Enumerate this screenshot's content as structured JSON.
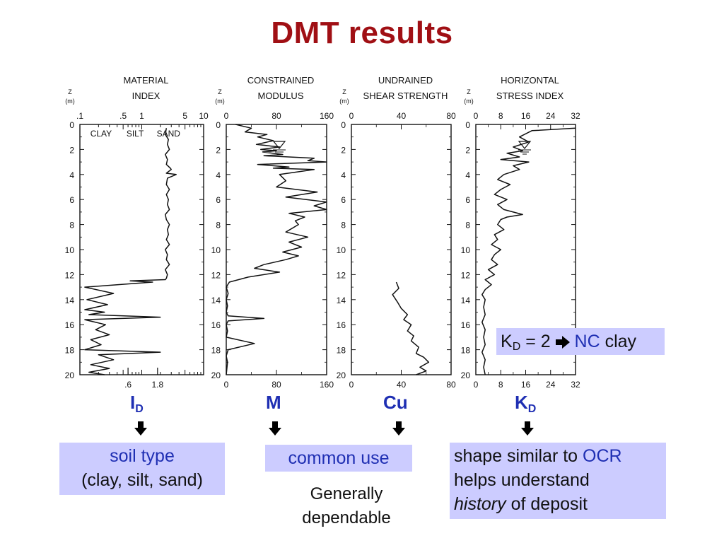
{
  "slide": {
    "title": "DMT results"
  },
  "chart_data": [
    {
      "type": "line",
      "title": "MATERIAL\nINDEX",
      "ylabel": "Z (m)",
      "xscale": "log",
      "xlim": [
        0.1,
        10
      ],
      "ylim": [
        20,
        0
      ],
      "x_top_ticks": [
        ".1",
        ".5",
        "1",
        "5",
        "10"
      ],
      "x_bottom_ticks": [
        ".6",
        "1.8"
      ],
      "y_ticks": [
        "0",
        "2",
        "4",
        "6",
        "8",
        "10",
        "12",
        "14",
        "16",
        "18",
        "20"
      ],
      "annotations": [
        "CLAY",
        "SILT",
        "SAND"
      ],
      "series": [
        {
          "x": [
            2.5,
            2.4,
            2.7,
            2.6,
            2.8,
            2.4,
            2.6,
            2.5,
            2.9,
            3.0,
            2.5,
            3.6,
            2.6,
            2.5,
            2.8,
            2.5,
            2.7,
            2.6,
            2.8,
            2.4,
            2.5,
            2.8,
            2.6,
            2.7,
            2.5,
            2.8,
            2.4,
            2.6,
            2.5,
            2.8,
            2.4,
            2.6,
            2.5,
            2.4,
            0.65,
            1.5,
            0.12,
            0.35,
            0.13,
            0.28,
            0.12,
            0.25,
            0.14,
            2.0,
            0.12,
            0.26,
            0.18,
            0.3,
            0.15,
            0.22,
            0.12,
            2.0,
            0.2,
            0.35,
            0.15,
            0.3,
            0.14,
            0.25
          ],
          "z": [
            0.3,
            0.8,
            1.2,
            1.6,
            2.0,
            2.4,
            2.8,
            3.2,
            3.5,
            3.6,
            3.9,
            4.0,
            4.3,
            4.8,
            5.2,
            5.6,
            6.0,
            6.4,
            6.8,
            7.2,
            7.6,
            8.0,
            8.4,
            8.8,
            9.2,
            9.6,
            10.0,
            10.4,
            10.8,
            11.2,
            11.6,
            12.0,
            12.3,
            12.4,
            12.5,
            12.6,
            13.0,
            13.5,
            14.0,
            14.4,
            14.8,
            15.0,
            15.2,
            15.4,
            15.6,
            16.0,
            16.4,
            16.8,
            17.2,
            17.6,
            18.0,
            18.2,
            18.4,
            18.8,
            19.2,
            19.5,
            19.8,
            20.0
          ]
        }
      ],
      "symbol": "I",
      "symbol_sub": "D"
    },
    {
      "type": "line",
      "title": "CONSTRAINED\nMODULUS",
      "ylabel": "Z (m)",
      "xlim": [
        0,
        160
      ],
      "ylim": [
        20,
        0
      ],
      "x_top_ticks": [
        "0",
        "80",
        "160"
      ],
      "x_bottom_ticks": [
        "0",
        "80",
        "160"
      ],
      "y_ticks": [
        "0",
        "2",
        "4",
        "6",
        "8",
        "10",
        "12",
        "14",
        "16",
        "18",
        "20"
      ],
      "series": [
        {
          "x": [
            15,
            40,
            30,
            65,
            50,
            75,
            48,
            85,
            55,
            80,
            58,
            90,
            60,
            140,
            130,
            160,
            50,
            100,
            75,
            140,
            85,
            95,
            80,
            145,
            95,
            160,
            140,
            160,
            100,
            125,
            110,
            115,
            95,
            130,
            100,
            120,
            90,
            115,
            95,
            60,
            45,
            85,
            35,
            5,
            0,
            3,
            0,
            2,
            0,
            3,
            60,
            3,
            0,
            2,
            0,
            45,
            3,
            0,
            2,
            0
          ],
          "z": [
            0.0,
            0.3,
            0.6,
            0.8,
            1.0,
            1.3,
            1.6,
            1.8,
            2.0,
            2.1,
            2.2,
            2.4,
            2.5,
            2.7,
            2.9,
            3.0,
            3.2,
            3.4,
            3.5,
            3.6,
            4.0,
            4.5,
            5.0,
            5.4,
            5.8,
            6.2,
            6.5,
            6.8,
            7.1,
            7.4,
            7.7,
            8.0,
            8.6,
            9.0,
            9.4,
            9.8,
            10.2,
            10.5,
            10.8,
            11.2,
            11.5,
            11.8,
            12.2,
            12.6,
            13.0,
            13.5,
            14.0,
            14.5,
            15.0,
            15.3,
            15.5,
            15.7,
            16.0,
            16.5,
            17.0,
            17.5,
            18.0,
            18.5,
            19.0,
            20.0
          ]
        }
      ],
      "symbol": "M"
    },
    {
      "type": "line",
      "title": "UNDRAINED\nSHEAR STRENGTH",
      "ylabel": "Z (m)",
      "xlim": [
        0,
        80
      ],
      "ylim": [
        20,
        0
      ],
      "x_top_ticks": [
        "0",
        "40",
        "80"
      ],
      "x_bottom_ticks": [
        "0",
        "40",
        "80"
      ],
      "y_ticks": [
        "0",
        "2",
        "4",
        "6",
        "8",
        "10",
        "12",
        "14",
        "16",
        "18",
        "20"
      ],
      "series": [
        {
          "x": [
            36,
            38,
            33,
            37,
            40,
            45,
            42,
            48,
            45,
            50,
            48,
            54,
            52,
            58,
            62,
            55,
            60,
            52
          ],
          "z": [
            12.6,
            13.1,
            13.6,
            14.2,
            14.7,
            15.2,
            15.6,
            16.0,
            16.5,
            16.9,
            17.3,
            17.8,
            18.3,
            18.6,
            19.0,
            19.4,
            19.7,
            20.0
          ]
        }
      ],
      "symbol": "Cu"
    },
    {
      "type": "line",
      "title": "HORIZONTAL\nSTRESS INDEX",
      "ylabel": "Z (m)",
      "xlim": [
        0,
        32
      ],
      "ylim": [
        20,
        0
      ],
      "x_top_ticks": [
        "0",
        "8",
        "16",
        "24",
        "32"
      ],
      "x_bottom_ticks": [
        "0",
        "8",
        "16",
        "24",
        "32"
      ],
      "y_ticks": [
        "0",
        "2",
        "4",
        "6",
        "8",
        "10",
        "12",
        "14",
        "16",
        "18",
        "20"
      ],
      "series": [
        {
          "x": [
            32,
            18,
            14,
            17,
            12,
            15,
            10,
            14,
            8,
            17,
            12,
            14,
            9,
            7,
            11,
            8,
            6,
            10,
            7,
            9,
            12,
            15,
            10,
            8,
            7,
            9,
            6,
            7,
            5,
            8,
            6,
            5,
            7,
            4,
            6,
            3,
            5,
            3,
            2,
            3,
            2.5,
            3,
            2,
            3,
            2.5,
            3,
            2,
            3,
            2.5,
            3
          ],
          "z": [
            0.3,
            0.5,
            1.0,
            1.4,
            1.8,
            2.1,
            2.3,
            2.6,
            2.8,
            3.0,
            3.3,
            3.6,
            4.0,
            4.4,
            4.8,
            5.2,
            5.6,
            6.0,
            6.4,
            6.8,
            7.0,
            7.2,
            7.4,
            7.6,
            8.0,
            8.4,
            8.8,
            9.2,
            9.6,
            10.0,
            10.4,
            10.8,
            11.2,
            11.6,
            12.0,
            12.4,
            12.8,
            13.2,
            13.6,
            14.0,
            14.6,
            15.2,
            15.8,
            16.4,
            17.0,
            17.6,
            18.2,
            18.8,
            19.4,
            20.0
          ]
        }
      ],
      "symbol": "K",
      "symbol_sub": "D"
    }
  ],
  "notes": {
    "kd_note": {
      "k": "K",
      "sub": "D",
      "eq": " = 2 ",
      "nc": "NC",
      "clay": " clay"
    },
    "box1": {
      "line1": "soil type",
      "line2": "(clay, silt, sand)"
    },
    "box2": {
      "text": "common use"
    },
    "box2_below": {
      "line1": "Generally",
      "line2": "dependable"
    },
    "box3": {
      "line1a": "shape similar to ",
      "line1b": "OCR",
      "line2": "helps understand",
      "line3a": "history",
      "line3b": " of deposit"
    }
  },
  "colors": {
    "title": "#a00f14",
    "symbol_blue": "#1f2fb3",
    "box_fill": "#ccccff"
  },
  "icons": [
    "arrow-down-icon",
    "arrow-right-icon",
    "water-table-icon"
  ]
}
